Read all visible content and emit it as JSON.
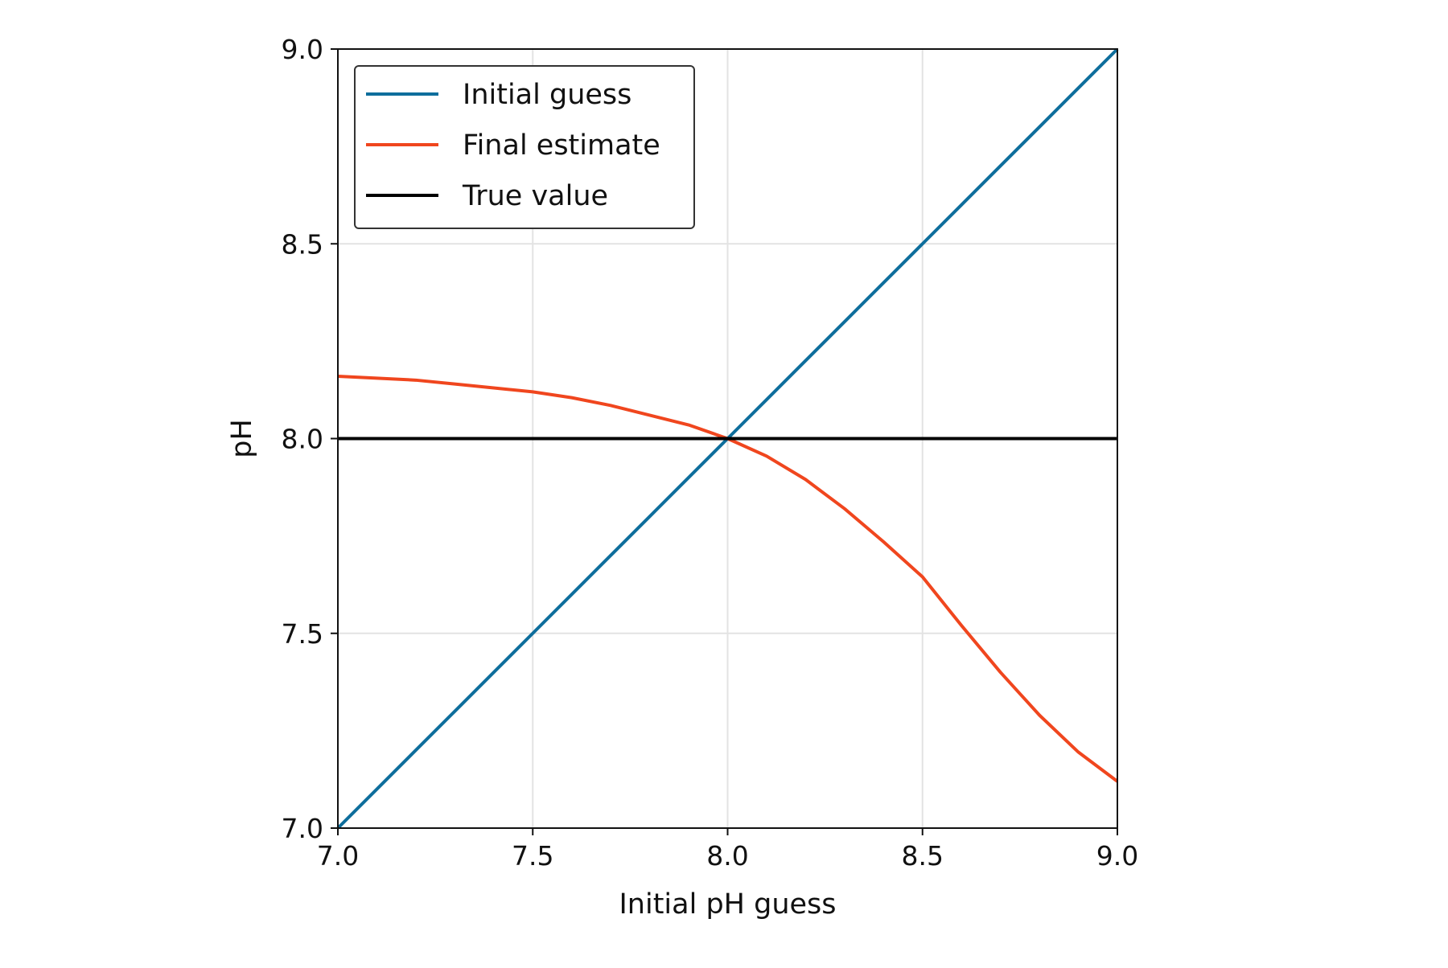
{
  "chart_data": {
    "type": "line",
    "title": "",
    "xlabel": "Initial pH guess",
    "ylabel": "pH",
    "xlim": [
      7.0,
      9.0
    ],
    "ylim": [
      7.0,
      9.0
    ],
    "grid": true,
    "legend_position": "top-left",
    "x_ticks": [
      "7.0",
      "7.5",
      "8.0",
      "8.5",
      "9.0"
    ],
    "y_ticks": [
      "7.0",
      "7.5",
      "8.0",
      "8.5",
      "9.0"
    ],
    "x": [
      7.0,
      7.1,
      7.2,
      7.3,
      7.4,
      7.5,
      7.6,
      7.7,
      7.8,
      7.9,
      8.0,
      8.1,
      8.2,
      8.3,
      8.4,
      8.5,
      8.6,
      8.7,
      8.8,
      8.9,
      9.0
    ],
    "series": [
      {
        "name": "Initial guess",
        "color": "#0e6e9c",
        "values": [
          7.0,
          7.1,
          7.2,
          7.3,
          7.4,
          7.5,
          7.6,
          7.7,
          7.8,
          7.9,
          8.0,
          8.1,
          8.2,
          8.3,
          8.4,
          8.5,
          8.6,
          8.7,
          8.8,
          8.9,
          9.0
        ]
      },
      {
        "name": "Final estimate",
        "color": "#f0461e",
        "values": [
          8.16,
          8.155,
          8.15,
          8.14,
          8.13,
          8.12,
          8.105,
          8.085,
          8.06,
          8.035,
          8.0,
          7.955,
          7.895,
          7.82,
          7.735,
          7.645,
          7.52,
          7.4,
          7.29,
          7.195,
          7.12
        ]
      },
      {
        "name": "True value",
        "color": "#000000",
        "values": [
          8.0,
          8.0,
          8.0,
          8.0,
          8.0,
          8.0,
          8.0,
          8.0,
          8.0,
          8.0,
          8.0,
          8.0,
          8.0,
          8.0,
          8.0,
          8.0,
          8.0,
          8.0,
          8.0,
          8.0,
          8.0
        ]
      }
    ]
  }
}
